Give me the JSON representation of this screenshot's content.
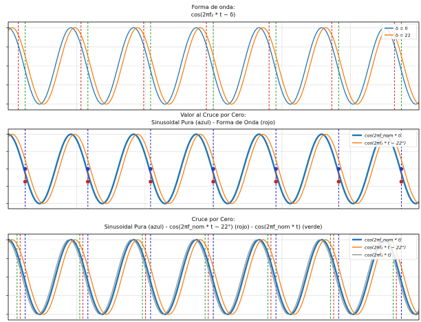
{
  "chart_data": [
    {
      "type": "line",
      "title": "Forma de onda:",
      "subtitle": "cos(2πf₂ * t − δ)",
      "grid": true,
      "legend_position": "top-right",
      "ylim": [
        -1.15,
        1.15
      ],
      "x_periods": [
        0,
        6.55
      ],
      "vlines_period_phase": {
        "red": 0.16,
        "darkgreen": 0.27
      },
      "series": [
        {
          "name": "δ = 0",
          "phase_deg": 0,
          "color": "#1f77b4",
          "width": 1.3
        },
        {
          "name": "δ = 22",
          "phase_deg": 22,
          "color": "#ff7f0e",
          "width": 1.3
        }
      ]
    },
    {
      "type": "line",
      "title": "Valor al Cruce por Cero:",
      "subtitle": "Sinusoidal Pura (azul) - Forma de Onda (rojo)",
      "grid": true,
      "legend_position": "top-right",
      "ylim": [
        -1.15,
        1.15
      ],
      "x_periods": [
        0,
        6.55
      ],
      "vlines_period_phase": {
        "blue": 0.27
      },
      "markers": {
        "blue_value": 0.0,
        "red_value": -0.37
      },
      "series": [
        {
          "name": "cos(2πf_nom * t)",
          "phase_deg": 0,
          "color": "#1f77b4",
          "width": 2.4
        },
        {
          "name": "cos(2πf₁ * t − 22°)",
          "phase_deg": 22,
          "color": "#ff7f0e",
          "width": 1.3
        }
      ]
    },
    {
      "type": "line",
      "title": "Cruce por Cero:",
      "subtitle": "Sinusoidal Pura (azul) - cos(2πf_nom * t − 22°) (rojo) - cos(2πf_nom * t) (verde)",
      "grid": true,
      "legend_position": "top-right",
      "ylim": [
        -1.15,
        1.15
      ],
      "x_periods": [
        0,
        6.55
      ],
      "vlines_period_phase": {
        "darkgreen": 0.14,
        "red": 0.19,
        "blue": 0.27
      },
      "series": [
        {
          "name": "cos(2πf_nom * t)",
          "phase_deg": 0,
          "color": "#1f77b4",
          "width": 2.4
        },
        {
          "name": "cos(2πf₁ * t − 22°)",
          "phase_deg": 22,
          "color": "#ff7f0e",
          "width": 1.3
        },
        {
          "name": "cos(2πf₁ * t)",
          "phase_deg": -10,
          "color": "#9a9a9a",
          "width": 1.3
        }
      ]
    }
  ]
}
